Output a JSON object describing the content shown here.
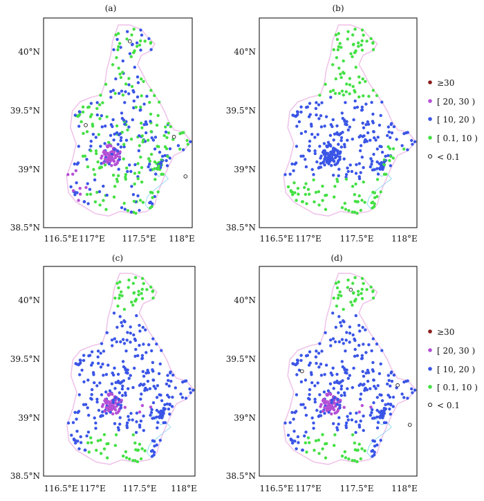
{
  "panels": [
    {
      "label": "(a)",
      "mode": "a"
    },
    {
      "label": "(b)",
      "mode": "b"
    },
    {
      "label": "(c)",
      "mode": "c"
    },
    {
      "label": "(d)",
      "mode": "d"
    }
  ],
  "axes": {
    "x_ticks": [
      "116.5°E",
      "117°E",
      "117.5°E",
      "118°E"
    ],
    "y_ticks": [
      "38.5°N",
      "39°N",
      "39.5°N",
      "40°N"
    ],
    "lon_range": [
      116.5,
      118.05
    ],
    "lat_range": [
      38.5,
      40.3
    ]
  },
  "legend": {
    "items": [
      {
        "label": "≥30",
        "color": "#8b1a1a",
        "hollow": false
      },
      {
        "label": "[ 20, 30 )",
        "color": "#b44fd6",
        "hollow": false
      },
      {
        "label": "[ 10, 20 )",
        "color": "#3a55e6",
        "hollow": false
      },
      {
        "label": "[ 0.1, 10 )",
        "color": "#44e044",
        "hollow": false
      },
      {
        "label": "< 0.1",
        "color": "#000000",
        "hollow": true
      }
    ]
  },
  "colors": {
    "boundary": "#f0c4ea",
    "coast": "#7fd3f0",
    "frame": "#000000"
  }
}
